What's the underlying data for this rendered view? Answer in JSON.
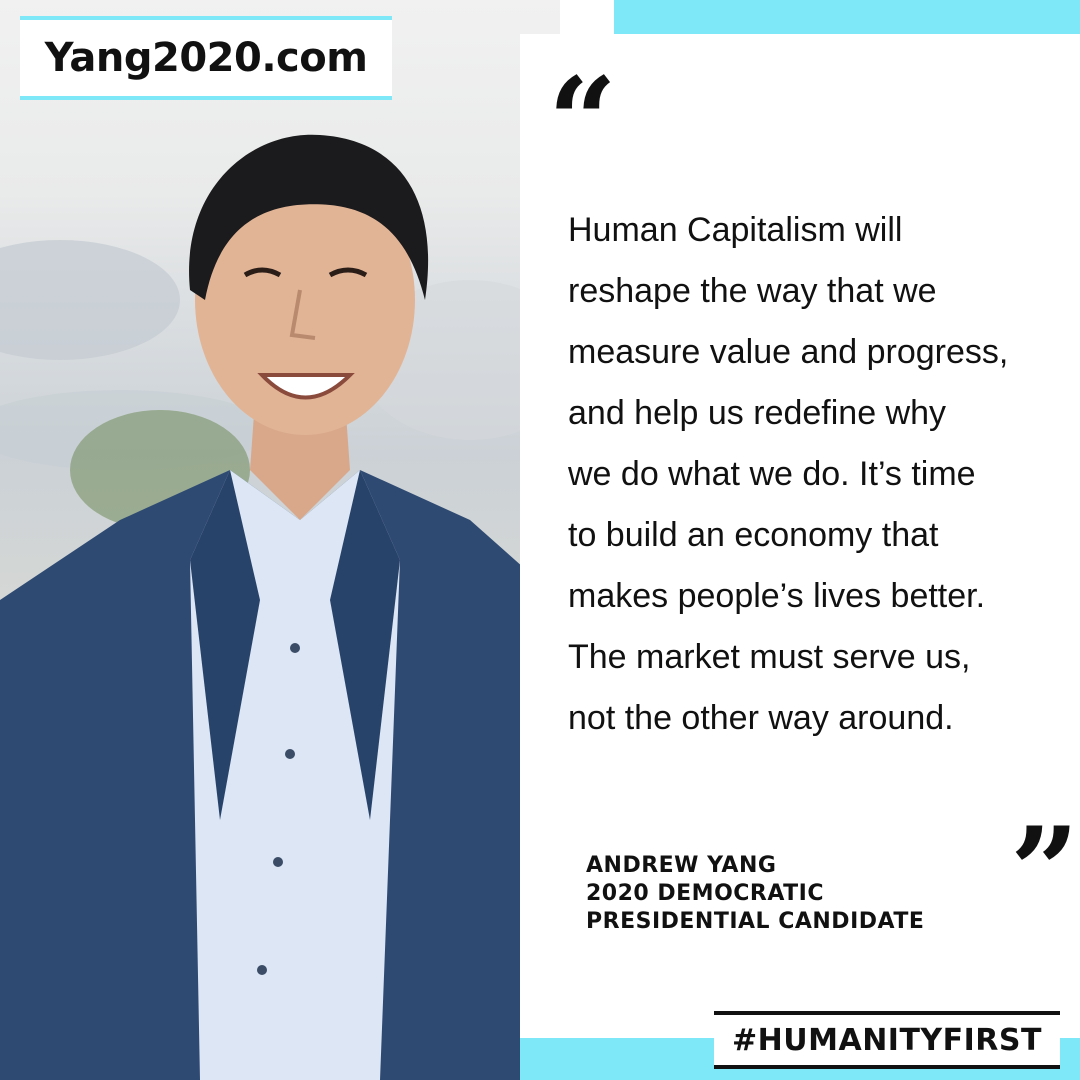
{
  "header": {
    "url": "Yang2020.com"
  },
  "quote": {
    "open_mark": "“",
    "close_mark": "”",
    "lines": [
      "Human Capitalism will",
      "reshape the way that we",
      "measure value and progress,",
      "and help us redefine why",
      "we do what we do. It’s time",
      "to build an economy that",
      "makes people’s lives better.",
      "The market must serve us,",
      "not the other way around."
    ]
  },
  "attribution": {
    "name": "ANDREW YANG",
    "title_line1": "2020 DEMOCRATIC",
    "title_line2": "PRESIDENTIAL CANDIDATE"
  },
  "footer": {
    "hashtag": "#HUMANITYFIRST"
  },
  "colors": {
    "accent": "#7ee7f8",
    "text": "#111111",
    "suit": "#2e4a73",
    "shirt": "#dce6f5"
  }
}
